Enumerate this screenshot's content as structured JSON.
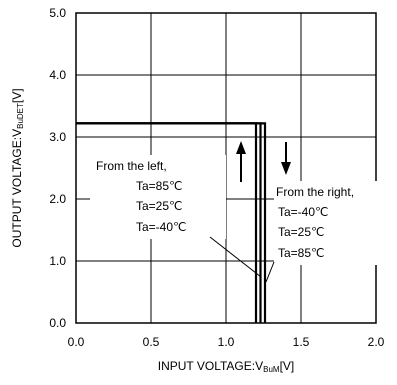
{
  "chart_data": {
    "type": "line",
    "title": "",
    "xlabel_main": "INPUT VOLTAGE:V",
    "xlabel_sub": "BuM",
    "xlabel_unit": "[V]",
    "ylabel_main": "OUTPUT VOLTAGE:V",
    "ylabel_sub": "BuDET",
    "ylabel_unit": "[V]",
    "xlim": [
      0.0,
      2.0
    ],
    "ylim": [
      0.0,
      5.0
    ],
    "x_ticks": [
      "0.0",
      "0.5",
      "1.0",
      "1.5",
      "2.0"
    ],
    "y_ticks": [
      "0.0",
      "1.0",
      "2.0",
      "3.0",
      "4.0",
      "5.0"
    ],
    "grid": true,
    "colors": {
      "series": "#000000",
      "grid": "#000000",
      "background": "#ffffff"
    },
    "series": [
      {
        "name": "Ta=85℃",
        "points": [
          [
            0.0,
            3.22
          ],
          [
            1.2,
            3.22
          ],
          [
            1.2,
            0.0
          ]
        ]
      },
      {
        "name": "Ta=25℃",
        "points": [
          [
            0.0,
            3.22
          ],
          [
            1.23,
            3.22
          ],
          [
            1.23,
            0.0
          ]
        ]
      },
      {
        "name": "Ta=-40℃",
        "points": [
          [
            0.0,
            3.22
          ],
          [
            1.26,
            3.22
          ],
          [
            1.26,
            0.0
          ]
        ]
      }
    ],
    "annotations": {
      "left": {
        "heading": "From the left,",
        "lines": [
          "Ta=85℃",
          "Ta=25℃",
          "Ta=-40℃"
        ],
        "arrow": "up"
      },
      "right": {
        "heading": "From the right,",
        "lines": [
          "Ta=-40℃",
          "Ta=25℃",
          "Ta=85℃"
        ],
        "arrow": "down"
      }
    }
  }
}
